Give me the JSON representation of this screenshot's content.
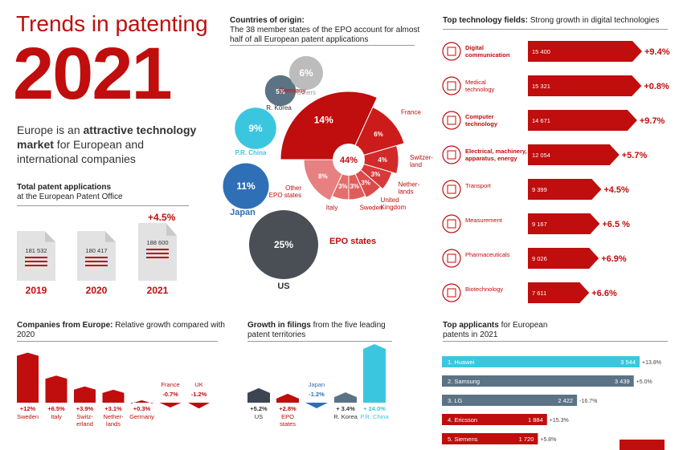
{
  "title": "Trends in patenting",
  "year": "2021",
  "tagline": {
    "pre": "Europe is an ",
    "bold": "attractive technology market",
    "post": " for European and international companies"
  },
  "total_apps": {
    "heading": "Total patent applications",
    "sub": "at the European Patent Office",
    "growth": "+4.5%",
    "docs": [
      {
        "value": "181 532",
        "year": "2019"
      },
      {
        "value": "180 417",
        "year": "2020"
      },
      {
        "value": "188 600",
        "year": "2021"
      }
    ]
  },
  "origin": {
    "heading": "Countries of origin:",
    "sub": "The 38 member states of the EPO account for almost half of all European patent applications",
    "epo_label": "EPO states",
    "center": "44%",
    "epo_segments": [
      {
        "label": "Germany",
        "pct": "14%",
        "value": 14
      },
      {
        "label": "France",
        "pct": "6%",
        "value": 6
      },
      {
        "label": "Switzer-\nland",
        "pct": "4%",
        "value": 4
      },
      {
        "label": "Nether-\nlands",
        "pct": "3%",
        "value": 3
      },
      {
        "label": "United\nKingdom",
        "pct": "3%",
        "value": 3
      },
      {
        "label": "Sweden",
        "pct": "3%",
        "value": 3
      },
      {
        "label": "Italy",
        "pct": "3%",
        "value": 3
      },
      {
        "label": "Other\nEPO states",
        "pct": "8%",
        "value": 8
      }
    ],
    "bubbles": [
      {
        "label": "US",
        "pct": "25%",
        "value": 25,
        "color": "#4a4e55"
      },
      {
        "label": "Japan",
        "pct": "11%",
        "value": 11,
        "color": "#2f6fb5"
      },
      {
        "label": "P.R. China",
        "pct": "9%",
        "value": 9,
        "color": "#3bc6e0"
      },
      {
        "label": "R. Korea",
        "pct": "5%",
        "value": 5,
        "color": "#5b7384"
      },
      {
        "label": "Others",
        "pct": "6%",
        "value": 6,
        "color": "#bcbcbc"
      }
    ]
  },
  "tech": {
    "heading": "Top technology fields:",
    "sub": "Strong growth in digital technologies",
    "fields": [
      {
        "name": "Digital\ncommunication",
        "value": 15400,
        "label": "15 400",
        "growth": "+9.4%",
        "icon": "chip-icon",
        "bold": true
      },
      {
        "name": "Medical\ntechnology",
        "value": 15321,
        "label": "15 321",
        "growth": "+0.8%",
        "icon": "heart-icon",
        "bold": false
      },
      {
        "name": "Computer\ntechnology",
        "value": 14671,
        "label": "14 671",
        "growth": "+9.7%",
        "icon": "computer-icon",
        "bold": true
      },
      {
        "name": "Electrical, machinery,\napparatus, energy",
        "value": 12054,
        "label": "12 054",
        "growth": "+5.7%",
        "icon": "lightning-icon",
        "bold": true
      },
      {
        "name": "Transport",
        "value": 9399,
        "label": "9 399",
        "growth": "+4.5%",
        "icon": "car-icon",
        "bold": false
      },
      {
        "name": "Measurement",
        "value": 9167,
        "label": "9 167",
        "growth": "+6.5 %",
        "icon": "thermometer-icon",
        "bold": false
      },
      {
        "name": "Pharmaceuticals",
        "value": 9026,
        "label": "9 026",
        "growth": "+6.9%",
        "icon": "pill-icon",
        "bold": false
      },
      {
        "name": "Biotechnology",
        "value": 7611,
        "label": "7 611",
        "growth": "+6.6%",
        "icon": "leaf-icon",
        "bold": false
      }
    ]
  },
  "companies": {
    "heading": "Companies from Europe:",
    "sub": "Relative growth compared with 2020",
    "items": [
      {
        "label": "Sweden",
        "growth": "+12%",
        "value": 12
      },
      {
        "label": "Italy",
        "growth": "+6.5%",
        "value": 6.5
      },
      {
        "label": "Switz-\nerland",
        "growth": "+3.9%",
        "value": 3.9
      },
      {
        "label": "Nether-\nlands",
        "growth": "+3.1%",
        "value": 3.1
      },
      {
        "label": "Germany",
        "growth": "+0.3%",
        "value": 0.3
      },
      {
        "label": "France",
        "growth": "-0.7%",
        "value": -0.7
      },
      {
        "label": "UK",
        "growth": "-1.2%",
        "value": -1.2
      }
    ]
  },
  "filings": {
    "heading": "Growth in filings",
    "sub": "from the five leading patent territories",
    "items": [
      {
        "label": "US",
        "growth": "+5.2%",
        "value": 5.2,
        "color": "#3e4552"
      },
      {
        "label": "EPO\nstates",
        "growth": "+2.8%",
        "value": 2.8,
        "color": "#c00d0d"
      },
      {
        "label": "Japan",
        "growth": "-1.2%",
        "value": -1.2,
        "color": "#2f6fb5"
      },
      {
        "label": "R. Korea",
        "growth": "+ 3.4%",
        "value": 3.4,
        "color": "#5b7384"
      },
      {
        "label": "P.R. China",
        "growth": "+ 24.0%",
        "value": 24,
        "color": "#3bc6e0"
      }
    ]
  },
  "applicants": {
    "heading": "Top applicants",
    "sub": "for European patents in 2021",
    "items": [
      {
        "name": "1. Huawei",
        "value": 3544,
        "label": "3 544",
        "growth": "+13.8%",
        "color": "#3bc6e0"
      },
      {
        "name": "2. Samsung",
        "value": 3439,
        "label": "3 439",
        "growth": "+5.0%",
        "color": "#5b7384"
      },
      {
        "name": "3. LG",
        "value": 2422,
        "label": "2 422",
        "growth": "-16.7%",
        "color": "#5b7384"
      },
      {
        "name": "4. Ericsson",
        "value": 1884,
        "label": "1 884",
        "growth": "+15.3%",
        "color": "#c00d0d"
      },
      {
        "name": "5. Siemens",
        "value": 1720,
        "label": "1 720",
        "growth": "+5.8%",
        "color": "#c00d0d"
      }
    ]
  },
  "colors": {
    "accent": "#c00d0d"
  }
}
